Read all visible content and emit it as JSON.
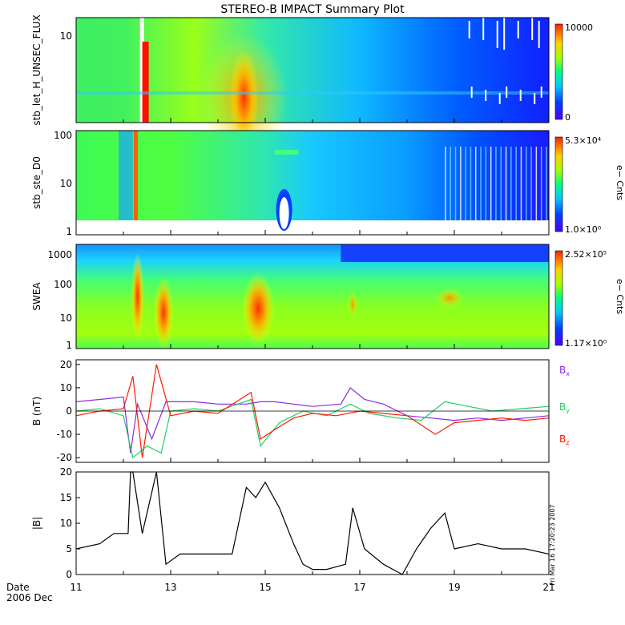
{
  "title": "STEREO-B IMPACT Summary Plot",
  "date_label": {
    "line1": "Date",
    "line2": "2006 Dec"
  },
  "timestamp": "Fri Mar 16 17:20:23 2007",
  "colors": {
    "bx": "#8a2be2",
    "by": "#1fd060",
    "bz": "#ff1a00",
    "line": "#000000"
  },
  "chart_data": [
    {
      "type": "heatmap",
      "ylabel": "stb_let_H_UNSEC_FLUX",
      "yticks": [
        "10"
      ],
      "colorbar": {
        "top": "10000",
        "bottom": "0",
        "label": ""
      },
      "xlim": [
        11,
        21
      ]
    },
    {
      "type": "heatmap",
      "ylabel": "stb_ste_D0",
      "yscale": "log",
      "ylim": [
        1,
        100
      ],
      "yticks": [
        "100",
        "10",
        "1"
      ],
      "colorbar": {
        "top": "5.3×10⁴",
        "bottom": "1.0×10⁰",
        "label": "e− Cnts"
      },
      "xlim": [
        11,
        21
      ]
    },
    {
      "type": "heatmap",
      "ylabel": "SWEA",
      "yscale": "log",
      "ylim": [
        1,
        1500
      ],
      "yticks": [
        "1000",
        "100",
        "10",
        "1"
      ],
      "colorbar": {
        "top": "2.52×10⁵",
        "bottom": "1.17×10⁰",
        "label": "e− Cnts"
      },
      "xlim": [
        11,
        21
      ]
    },
    {
      "type": "line",
      "ylabel": "B (nT)",
      "ylim": [
        -22,
        22
      ],
      "yticks": [
        "20",
        "10",
        "0",
        "-10",
        "-20"
      ],
      "xlim": [
        11,
        21
      ],
      "series": [
        {
          "name": "Bx",
          "label_main": "B",
          "label_sub": "x",
          "x": [
            11,
            11.5,
            12,
            12.15,
            12.3,
            12.6,
            12.9,
            13.5,
            14,
            14.6,
            14.9,
            15.2,
            15.6,
            16,
            16.6,
            16.8,
            17.1,
            17.5,
            18,
            18.5,
            19,
            19.5,
            20,
            20.5,
            21
          ],
          "values": [
            4,
            5,
            6,
            -18,
            3,
            -12,
            4,
            4,
            3,
            3,
            4,
            4,
            3,
            2,
            3,
            10,
            5,
            3,
            -2,
            -3,
            -4,
            -3,
            -4,
            -3,
            -2
          ]
        },
        {
          "name": "By",
          "label_main": "B",
          "label_sub": "y",
          "x": [
            11,
            11.5,
            12,
            12.2,
            12.5,
            12.8,
            13,
            13.5,
            14,
            14.7,
            14.9,
            15.3,
            15.8,
            16.3,
            16.8,
            17.2,
            17.8,
            18.3,
            18.8,
            19.3,
            19.8,
            20.4,
            21
          ],
          "values": [
            0,
            1,
            -2,
            -20,
            -15,
            -18,
            0,
            1,
            0,
            5,
            -15,
            -5,
            0,
            -2,
            3,
            -1,
            -3,
            -4,
            4,
            2,
            0,
            1,
            2
          ]
        },
        {
          "name": "Bz",
          "label_main": "B",
          "label_sub": "z",
          "x": [
            11,
            11.5,
            12,
            12.2,
            12.4,
            12.7,
            13,
            13.5,
            14,
            14.7,
            14.9,
            15.2,
            15.6,
            16,
            16.5,
            17,
            17.5,
            18,
            18.6,
            19,
            19.5,
            20,
            20.5,
            21
          ],
          "values": [
            -2,
            0,
            1,
            15,
            -20,
            20,
            -2,
            0,
            -1,
            8,
            -12,
            -8,
            -3,
            -1,
            -2,
            0,
            -1,
            -2,
            -10,
            -5,
            -4,
            -3,
            -4,
            -3
          ]
        }
      ]
    },
    {
      "type": "line",
      "ylabel": "|B|",
      "ylim": [
        0,
        20
      ],
      "yticks": [
        "20",
        "15",
        "10",
        "5",
        "0"
      ],
      "xlim": [
        11,
        21
      ],
      "x": [
        11,
        11.5,
        11.8,
        12.1,
        12.15,
        12.2,
        12.4,
        12.7,
        12.9,
        13.2,
        13.8,
        14.3,
        14.6,
        14.8,
        15.0,
        15.3,
        15.6,
        15.8,
        16.0,
        16.3,
        16.7,
        16.85,
        17.1,
        17.5,
        17.9,
        18.2,
        18.5,
        18.8,
        19.0,
        19.5,
        20.0,
        20.5,
        21
      ],
      "values": [
        5,
        6,
        8,
        8,
        20,
        20,
        8,
        20,
        2,
        4,
        4,
        4,
        17,
        15,
        18,
        13,
        6,
        2,
        1,
        1,
        2,
        13,
        5,
        2,
        0,
        5,
        9,
        12,
        5,
        6,
        5,
        5,
        4
      ]
    }
  ],
  "xaxis": {
    "ticks": [
      "11",
      "13",
      "15",
      "17",
      "19",
      "21"
    ]
  }
}
